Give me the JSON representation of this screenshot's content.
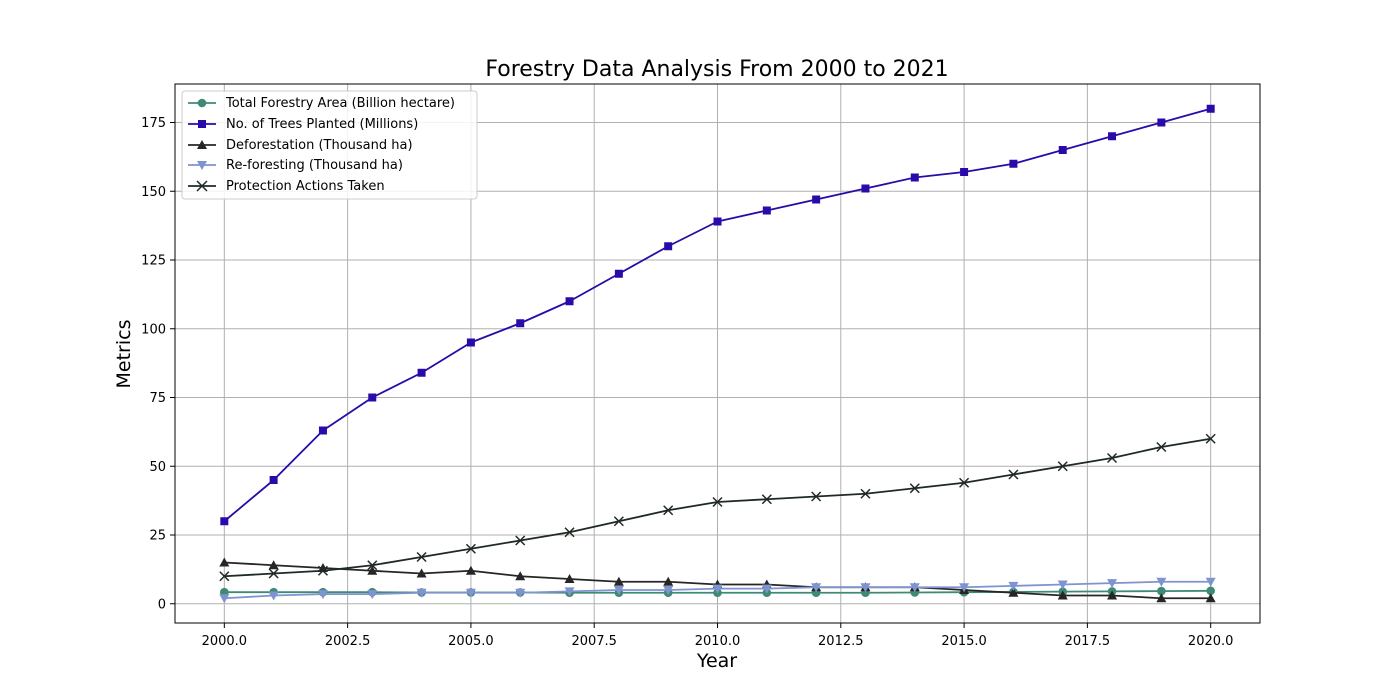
{
  "chart_data": {
    "type": "line",
    "title": "Forestry Data Analysis From 2000 to 2021",
    "xlabel": "Year",
    "ylabel": "Metrics",
    "xlim": [
      1999,
      2021
    ],
    "ylim": [
      -7,
      189
    ],
    "x_ticks": [
      2000,
      2002.5,
      2005,
      2007.5,
      2010,
      2012.5,
      2015,
      2017.5,
      2020
    ],
    "x_tick_labels": [
      "2000.0",
      "2002.5",
      "2005.0",
      "2007.5",
      "2010.0",
      "2012.5",
      "2015.0",
      "2017.5",
      "2020.0"
    ],
    "y_ticks": [
      0,
      25,
      50,
      75,
      100,
      125,
      150,
      175
    ],
    "y_tick_labels": [
      "0",
      "25",
      "50",
      "75",
      "100",
      "125",
      "150",
      "175"
    ],
    "grid": true,
    "legend_position": "top-left",
    "x": [
      2000,
      2001,
      2002,
      2003,
      2004,
      2005,
      2006,
      2007,
      2008,
      2009,
      2010,
      2011,
      2012,
      2013,
      2014,
      2015,
      2016,
      2017,
      2018,
      2019,
      2020
    ],
    "series": [
      {
        "name": "Total Forestry Area (Billion hectare)",
        "color": "#3f8a76",
        "marker": "circle",
        "values": [
          4.2,
          4.2,
          4.2,
          4.2,
          4.1,
          4.1,
          4.1,
          4.0,
          4.0,
          4.0,
          4.0,
          4.0,
          4.0,
          4.0,
          4.1,
          4.2,
          4.3,
          4.4,
          4.5,
          4.6,
          4.7
        ]
      },
      {
        "name": "No. of Trees Planted (Millions)",
        "color": "#2a0aa8",
        "marker": "square",
        "values": [
          30,
          45,
          63,
          75,
          84,
          95,
          102,
          110,
          120,
          130,
          139,
          143,
          147,
          151,
          155,
          157,
          160,
          165,
          170,
          175,
          180
        ]
      },
      {
        "name": "Deforestation (Thousand ha)",
        "color": "#262626",
        "marker": "triangle-up",
        "values": [
          15,
          14,
          13,
          12,
          11,
          12,
          10,
          9,
          8,
          8,
          7,
          7,
          6,
          6,
          6,
          5,
          4,
          3,
          3,
          2,
          2
        ]
      },
      {
        "name": "Re-foresting (Thousand ha)",
        "color": "#7f93cf",
        "marker": "triangle-down",
        "values": [
          2,
          3,
          3.5,
          3.5,
          4,
          4,
          4,
          4.5,
          5,
          5,
          5.5,
          5.5,
          6,
          6,
          6,
          6,
          6.5,
          7,
          7.5,
          8,
          8
        ]
      },
      {
        "name": "Protection Actions Taken",
        "color": "#1f2a22",
        "marker": "x",
        "values": [
          10,
          11,
          12,
          14,
          17,
          20,
          23,
          26,
          30,
          34,
          37,
          38,
          39,
          40,
          42,
          44,
          47,
          50,
          53,
          57,
          60
        ]
      }
    ]
  }
}
